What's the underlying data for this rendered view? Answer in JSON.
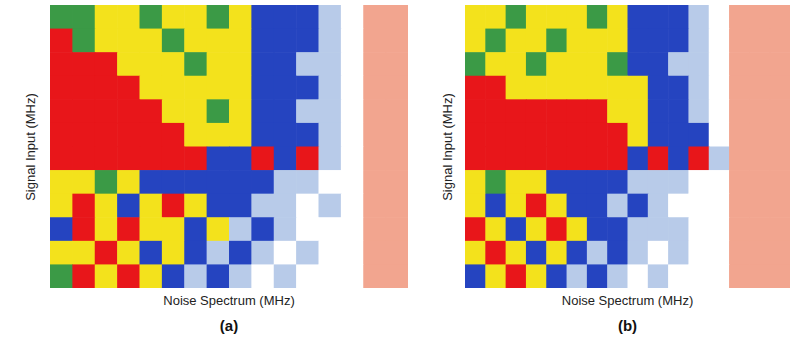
{
  "chart_data": [
    {
      "type": "heatmap",
      "label": "(a)",
      "x_label": "Noise Spectrum (MHz)",
      "y_label": "Signal Input (MHz)",
      "tick_labels": false,
      "cells": [
        [
          0.6,
          0.6,
          0.8,
          0.8,
          0.6,
          0.8,
          0.8,
          0.6,
          0.8,
          0.45,
          0.45,
          0.45,
          0.3,
          0,
          0.15,
          0.15
        ],
        [
          1,
          0.6,
          0.8,
          0.8,
          0.8,
          0.6,
          0.8,
          0.8,
          0.8,
          0.45,
          0.45,
          0.45,
          0.3,
          0,
          0.15,
          0.15
        ],
        [
          1,
          1,
          1,
          0.8,
          0.8,
          0.8,
          0.6,
          0.8,
          0.8,
          0.45,
          0.45,
          0.3,
          0.3,
          0,
          0.15,
          0.15
        ],
        [
          1,
          1,
          1,
          1,
          0.8,
          0.8,
          0.8,
          0.8,
          0.8,
          0.45,
          0.45,
          0.45,
          0.3,
          0,
          0.15,
          0.15
        ],
        [
          1,
          1,
          1,
          1,
          1,
          0.8,
          0.8,
          0.6,
          0.8,
          0.45,
          0.45,
          0.3,
          0.3,
          0,
          0.15,
          0.15
        ],
        [
          1,
          1,
          1,
          1,
          1,
          1,
          0.8,
          0.8,
          0.8,
          0.45,
          0.45,
          0.45,
          0.3,
          0,
          0.15,
          0.15
        ],
        [
          1,
          1,
          1,
          1,
          1,
          1,
          1,
          0.45,
          0.45,
          1,
          0.45,
          1,
          0.3,
          0,
          0.15,
          0.15
        ],
        [
          0.8,
          0.8,
          0.6,
          0.8,
          0.45,
          0.45,
          0.45,
          0.45,
          0.45,
          0.45,
          0.3,
          0.3,
          0,
          0,
          0.15,
          0.15
        ],
        [
          0.8,
          1,
          0.8,
          0.45,
          0.8,
          1,
          0.8,
          0.45,
          0.45,
          0.3,
          0.3,
          0,
          0.3,
          0,
          0.15,
          0.15
        ],
        [
          0.45,
          1,
          0.8,
          1,
          0.8,
          0.8,
          0.45,
          0.8,
          0.3,
          0.45,
          0.3,
          0,
          0,
          0,
          0.15,
          0.15
        ],
        [
          0.8,
          0.8,
          1,
          0.8,
          0.45,
          0.8,
          0.45,
          0.3,
          0.45,
          0.3,
          0,
          0.3,
          0,
          0,
          0.15,
          0.15
        ],
        [
          0.6,
          1,
          0.8,
          1,
          0.8,
          0.45,
          0.3,
          0.45,
          0.3,
          0,
          0.3,
          0,
          0,
          0,
          0.15,
          0.15
        ]
      ]
    },
    {
      "type": "heatmap",
      "label": "(b)",
      "x_label": "Noise Spectrum (MHz)",
      "y_label": "Signal Input (MHz)",
      "tick_labels": false,
      "cells": [
        [
          0.8,
          0.8,
          0.6,
          0.8,
          0.8,
          0.8,
          0.6,
          0.8,
          0.45,
          0.45,
          0.45,
          0.3,
          0,
          0.15,
          0.15,
          0.15
        ],
        [
          0.8,
          0.6,
          0.8,
          0.8,
          0.6,
          0.8,
          0.8,
          0.8,
          0.45,
          0.45,
          0.45,
          0.3,
          0,
          0.15,
          0.15,
          0.15
        ],
        [
          0.6,
          0.8,
          0.8,
          0.6,
          0.8,
          0.8,
          0.8,
          0.6,
          0.45,
          0.45,
          0.3,
          0.3,
          0,
          0.15,
          0.15,
          0.15
        ],
        [
          1,
          1,
          0.8,
          0.8,
          0.8,
          0.8,
          0.8,
          0.8,
          0.8,
          0.45,
          0.45,
          0.3,
          0,
          0.15,
          0.15,
          0.15
        ],
        [
          1,
          1,
          1,
          1,
          1,
          1,
          1,
          0.8,
          0.8,
          0.45,
          0.45,
          0.3,
          0,
          0.15,
          0.15,
          0.15
        ],
        [
          1,
          1,
          1,
          1,
          1,
          1,
          1,
          1,
          0.8,
          0.45,
          0.45,
          0.45,
          0,
          0.15,
          0.15,
          0.15
        ],
        [
          1,
          1,
          1,
          1,
          1,
          1,
          1,
          1,
          0.45,
          1,
          0.45,
          1,
          0.3,
          0.15,
          0.15,
          0.15
        ],
        [
          0.8,
          0.6,
          0.8,
          0.8,
          0.45,
          0.45,
          0.45,
          0.45,
          0.3,
          0.3,
          0.3,
          0,
          0,
          0.15,
          0.15,
          0.15
        ],
        [
          0.8,
          0.45,
          0.8,
          1,
          0.8,
          0.45,
          0.45,
          0.3,
          0.45,
          0.3,
          0,
          0,
          0,
          0.15,
          0.15,
          0.15
        ],
        [
          1,
          0.8,
          0.45,
          0.8,
          1,
          0.8,
          0.45,
          0.45,
          0.3,
          0.3,
          0.3,
          0,
          0,
          0.15,
          0.15,
          0.15
        ],
        [
          0.8,
          1,
          0.8,
          0.45,
          0.8,
          0.45,
          0.3,
          0.45,
          0.3,
          0,
          0.3,
          0,
          0,
          0.15,
          0.15,
          0.15
        ],
        [
          0.45,
          0.8,
          1,
          0.8,
          0.45,
          0.3,
          0.45,
          0.3,
          0,
          0.3,
          0,
          0,
          0,
          0.15,
          0.15,
          0.15
        ]
      ]
    }
  ]
}
